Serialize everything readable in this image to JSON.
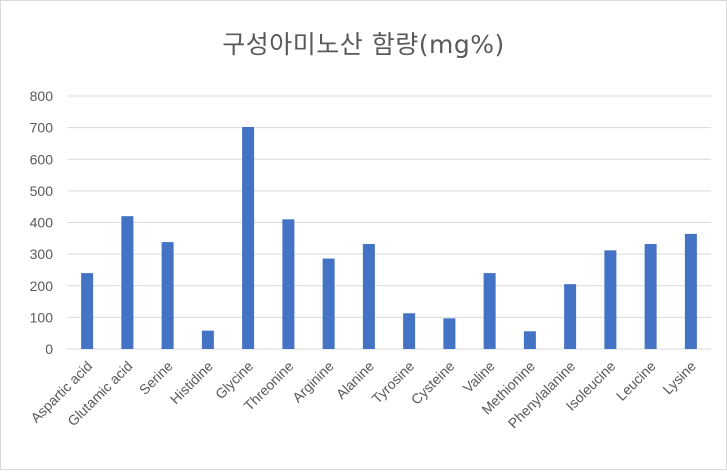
{
  "chart_data": {
    "type": "bar",
    "title": "구성아미노산 함량(mg%)",
    "xlabel": "",
    "ylabel": "",
    "ylim": [
      0,
      800
    ],
    "yticks": [
      0,
      100,
      200,
      300,
      400,
      500,
      600,
      700,
      800
    ],
    "grid": true,
    "legend": "none",
    "categories": [
      "Aspartic acid",
      "Glutamic acid",
      "Serine",
      "Histidine",
      "Glycine",
      "Threonine",
      "Arginine",
      "Alanine",
      "Tyrosine",
      "Cysteine",
      "Valine",
      "Methionine",
      "Phenylalanine",
      "Isoleucine",
      "Leucine",
      "Lysine"
    ],
    "values": [
      240,
      420,
      338,
      58,
      702,
      410,
      286,
      332,
      113,
      97,
      240,
      56,
      205,
      312,
      332,
      364
    ],
    "colors": {
      "bar": "#4472C4",
      "grid": "#d9d9d9",
      "axis_text": "#595959",
      "title": "#595959"
    }
  }
}
